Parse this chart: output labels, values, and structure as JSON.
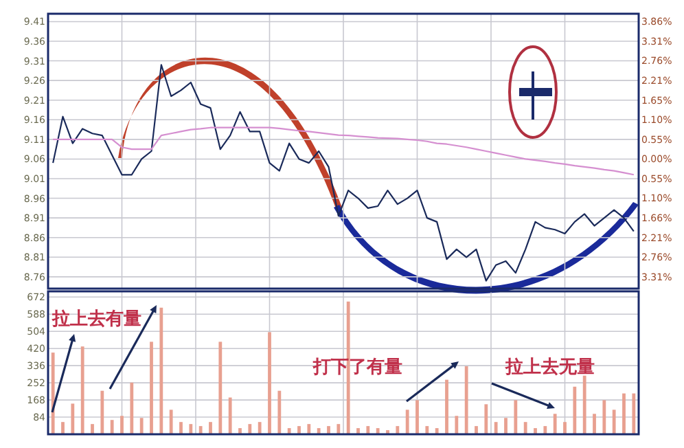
{
  "chart_data": [
    {
      "type": "line",
      "categories": [
        null,
        null,
        null,
        null,
        null,
        null,
        null,
        null,
        null,
        null,
        null,
        null,
        null,
        null,
        null,
        null,
        null,
        null,
        null,
        null,
        null,
        null,
        null,
        null,
        null,
        null,
        null,
        null,
        null,
        null,
        null,
        null,
        null,
        null,
        null,
        null,
        null,
        null,
        null,
        null,
        null,
        null,
        null,
        null,
        null,
        null,
        null,
        null,
        null,
        null,
        null,
        null,
        null,
        null,
        null,
        null,
        null,
        null,
        null,
        null
      ],
      "ylim": [
        8.73,
        9.43
      ],
      "yticks": [
        9.41,
        9.36,
        9.31,
        9.26,
        9.21,
        9.16,
        9.11,
        9.06,
        9.01,
        8.96,
        8.91,
        8.86,
        8.81,
        8.76
      ],
      "y2lim": [
        -3.64,
        4.08
      ],
      "y2ticks": [
        {
          "value": 3.86,
          "label": "3.86%"
        },
        {
          "value": 3.31,
          "label": "3.31%"
        },
        {
          "value": 2.76,
          "label": "2.76%"
        },
        {
          "value": 2.21,
          "label": "2.21%"
        },
        {
          "value": 1.65,
          "label": "1.65%"
        },
        {
          "value": 1.1,
          "label": "1.10%"
        },
        {
          "value": 0.55,
          "label": "0.55%"
        },
        {
          "value": 0.0,
          "label": "0.00%"
        },
        {
          "value": -0.55,
          "label": "0.55%"
        },
        {
          "value": -1.1,
          "label": "1.10%"
        },
        {
          "value": -1.66,
          "label": "1.66%"
        },
        {
          "value": -2.21,
          "label": "2.21%"
        },
        {
          "value": -2.76,
          "label": "2.76%"
        },
        {
          "value": -3.31,
          "label": "3.31%"
        }
      ],
      "grid": true,
      "series": [
        {
          "color": "#1a2a5a",
          "values": [
            9.05,
            9.168,
            9.1,
            9.137,
            9.125,
            9.12,
            9.07,
            9.02,
            9.02,
            9.06,
            9.08,
            9.3,
            9.22,
            9.235,
            9.255,
            9.2,
            9.19,
            9.085,
            9.12,
            9.18,
            9.13,
            9.13,
            9.05,
            9.03,
            9.1,
            9.06,
            9.05,
            9.08,
            9.04,
            8.915,
            8.98,
            8.96,
            8.935,
            8.94,
            8.98,
            8.945,
            8.96,
            8.98,
            8.91,
            8.9,
            8.805,
            8.83,
            8.81,
            8.83,
            8.75,
            8.79,
            8.8,
            8.77,
            8.83,
            8.9,
            8.885,
            8.88,
            8.87,
            8.9,
            8.92,
            8.89,
            8.91,
            8.93,
            8.91,
            8.876
          ]
        },
        {
          "color": "#d58fd0",
          "values": [
            9.11,
            9.11,
            9.11,
            9.11,
            9.11,
            9.11,
            9.11,
            9.09,
            9.085,
            9.085,
            9.085,
            9.12,
            9.125,
            9.13,
            9.135,
            9.137,
            9.14,
            9.14,
            9.14,
            9.14,
            9.14,
            9.14,
            9.14,
            9.138,
            9.135,
            9.132,
            9.13,
            9.127,
            9.124,
            9.121,
            9.12,
            9.118,
            9.116,
            9.114,
            9.113,
            9.112,
            9.11,
            9.108,
            9.105,
            9.1,
            9.098,
            9.094,
            9.09,
            9.085,
            9.08,
            9.075,
            9.07,
            9.065,
            9.06,
            9.057,
            9.054,
            9.05,
            9.047,
            9.043,
            9.04,
            9.037,
            9.033,
            9.03,
            9.025,
            9.02
          ]
        }
      ]
    },
    {
      "type": "bar",
      "categories": [
        null,
        null,
        null,
        null,
        null,
        null,
        null,
        null,
        null,
        null,
        null,
        null,
        null,
        null,
        null,
        null,
        null,
        null,
        null,
        null,
        null,
        null,
        null,
        null,
        null,
        null,
        null,
        null,
        null,
        null,
        null,
        null,
        null,
        null,
        null,
        null,
        null,
        null,
        null,
        null,
        null,
        null,
        null,
        null,
        null,
        null,
        null,
        null,
        null,
        null,
        null,
        null,
        null,
        null,
        null,
        null,
        null,
        null,
        null,
        null
      ],
      "ylim": [
        0,
        700
      ],
      "yticks": [
        84,
        168,
        252,
        336,
        420,
        504,
        588,
        672
      ],
      "grid": true,
      "annotations": [
        "拉上去有量",
        "打下了有量",
        "拉上去无量"
      ],
      "series": [
        {
          "color": "#e8a090",
          "values": [
            400,
            60,
            150,
            430,
            50,
            213,
            70,
            90,
            253,
            80,
            453,
            620,
            120,
            60,
            50,
            40,
            60,
            453,
            180,
            30,
            50,
            60,
            500,
            213,
            30,
            40,
            50,
            30,
            40,
            50,
            650,
            30,
            40,
            30,
            20,
            40,
            120,
            167,
            40,
            30,
            267,
            90,
            333,
            40,
            147,
            60,
            80,
            167,
            60,
            30,
            40,
            100,
            60,
            233,
            287,
            100,
            167,
            120,
            200,
            200
          ]
        }
      ]
    }
  ]
}
